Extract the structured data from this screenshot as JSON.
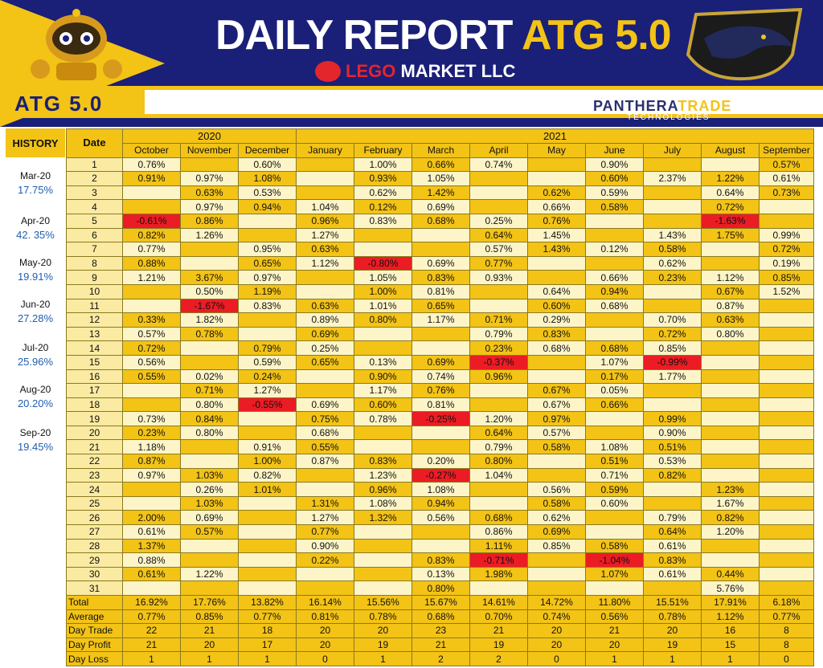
{
  "header": {
    "title_prefix": "DAILY REPORT",
    "title_accent": "ATG 5.0",
    "company_red": "LEGO",
    "company_rest": " MARKET LLC",
    "left_logo": "ATG 5.0",
    "right_brand_a": "PANTHERA",
    "right_brand_b": "TRADE",
    "right_brand_sub": "TECHNOLOGIES"
  },
  "history": {
    "label": "HISTORY",
    "entries": [
      {
        "month": "Mar-20",
        "value": "17.75%"
      },
      {
        "month": "Apr-20",
        "value": "42. 35%"
      },
      {
        "month": "May-20",
        "value": "19.91%"
      },
      {
        "month": "Jun-20",
        "value": "27.28%"
      },
      {
        "month": "Jul-20",
        "value": "25.96%"
      },
      {
        "month": "Aug-20",
        "value": "20.20%"
      },
      {
        "month": "Sep-20",
        "value": "19.45%"
      }
    ]
  },
  "table": {
    "date_label": "Date",
    "years": [
      {
        "label": "2020",
        "span": 3
      },
      {
        "label": "2021",
        "span": 9
      }
    ],
    "months": [
      "October",
      "November",
      "December",
      "January",
      "February",
      "March",
      "April",
      "May",
      "June",
      "July",
      "August",
      "September"
    ],
    "rows": [
      [
        "0.76%",
        "",
        "0.60%",
        "",
        "1.00%",
        "0.66%",
        "0.74%",
        "",
        "0.90%",
        "",
        "",
        "0.57%"
      ],
      [
        "0.91%",
        "0.97%",
        "1.08%",
        "",
        "0.93%",
        "1.05%",
        "",
        "",
        "0.60%",
        "2.37%",
        "1.22%",
        "0.61%"
      ],
      [
        "",
        "0.63%",
        "0.53%",
        "",
        "0.62%",
        "1.42%",
        "",
        "0.62%",
        "0.59%",
        "",
        "0.64%",
        "0.73%"
      ],
      [
        "",
        "0.97%",
        "0.94%",
        "1.04%",
        "0.12%",
        "0.69%",
        "",
        "0.66%",
        "0.58%",
        "",
        "0.72%",
        ""
      ],
      [
        "-0.61%",
        "0.86%",
        "",
        "0.96%",
        "0.83%",
        "0.68%",
        "0.25%",
        "0.76%",
        "",
        "",
        "-1.63%",
        ""
      ],
      [
        "0.82%",
        "1.26%",
        "",
        "1.27%",
        "",
        "",
        "0.64%",
        "1.45%",
        "",
        "1.43%",
        "1.75%",
        "0.99%"
      ],
      [
        "0.77%",
        "",
        "0.95%",
        "0.63%",
        "",
        "",
        "0.57%",
        "1.43%",
        "0.12%",
        "0.58%",
        "",
        "0.72%"
      ],
      [
        "0.88%",
        "",
        "0.65%",
        "1.12%",
        "-0.80%",
        "0.69%",
        "0.77%",
        "",
        "",
        "0.62%",
        "",
        "0.19%"
      ],
      [
        "1.21%",
        "3.67%",
        "0.97%",
        "",
        "1.05%",
        "0.83%",
        "0.93%",
        "",
        "0.66%",
        "0.23%",
        "1.12%",
        "0.85%"
      ],
      [
        "",
        "0.50%",
        "1.19%",
        "",
        "1.00%",
        "0.81%",
        "",
        "0.64%",
        "0.94%",
        "",
        "0.67%",
        "1.52%"
      ],
      [
        "",
        "-1.67%",
        "0.83%",
        "0.63%",
        "1.01%",
        "0.65%",
        "",
        "0.60%",
        "0.68%",
        "",
        "0.87%",
        ""
      ],
      [
        "0.33%",
        "1.82%",
        "",
        "0.89%",
        "0.80%",
        "1.17%",
        "0.71%",
        "0.29%",
        "",
        "0.70%",
        "0.63%",
        ""
      ],
      [
        "0.57%",
        "0.78%",
        "",
        "0.69%",
        "",
        "",
        "0.79%",
        "0.83%",
        "",
        "0.72%",
        "0.80%",
        ""
      ],
      [
        "0.72%",
        "",
        "0.79%",
        "0.25%",
        "",
        "",
        "0.23%",
        "0.68%",
        "0.68%",
        "0.85%",
        "",
        ""
      ],
      [
        "0.56%",
        "",
        "0.59%",
        "0.65%",
        "0.13%",
        "0.69%",
        "-0.37%",
        "",
        "1.07%",
        "-0.99%",
        "",
        ""
      ],
      [
        "0.55%",
        "0.02%",
        "0.24%",
        "",
        "0.90%",
        "0.74%",
        "0.96%",
        "",
        "0.17%",
        "1.77%",
        "",
        ""
      ],
      [
        "",
        "0.71%",
        "1.27%",
        "",
        "1.17%",
        "0.76%",
        "",
        "0.67%",
        "0.05%",
        "",
        "",
        ""
      ],
      [
        "",
        "0.80%",
        "-0.55%",
        "0.69%",
        "0.60%",
        "0.81%",
        "",
        "0.67%",
        "0.66%",
        "",
        "",
        ""
      ],
      [
        "0.73%",
        "0.84%",
        "",
        "0.75%",
        "0.78%",
        "-0.25%",
        "1.20%",
        "0.97%",
        "",
        "0.99%",
        "",
        ""
      ],
      [
        "0.23%",
        "0.80%",
        "",
        "0.68%",
        "",
        "",
        "0.64%",
        "0.57%",
        "",
        "0.90%",
        "",
        ""
      ],
      [
        "1.18%",
        "",
        "0.91%",
        "0.55%",
        "",
        "",
        "0.79%",
        "0.58%",
        "1.08%",
        "0.51%",
        "",
        ""
      ],
      [
        "0.87%",
        "",
        "1.00%",
        "0.87%",
        "0.83%",
        "0.20%",
        "0.80%",
        "",
        "0.51%",
        "0.53%",
        "",
        ""
      ],
      [
        "0.97%",
        "1.03%",
        "0.82%",
        "",
        "1.23%",
        "-0.27%",
        "1.04%",
        "",
        "0.71%",
        "0.82%",
        "",
        ""
      ],
      [
        "",
        "0.26%",
        "1.01%",
        "",
        "0.96%",
        "1.08%",
        "",
        "0.56%",
        "0.59%",
        "",
        "1.23%",
        ""
      ],
      [
        "",
        "1.03%",
        "",
        "1.31%",
        "1.08%",
        "0.94%",
        "",
        "0.58%",
        "0.60%",
        "",
        "1.67%",
        ""
      ],
      [
        "2.00%",
        "0.69%",
        "",
        "1.27%",
        "1.32%",
        "0.56%",
        "0.68%",
        "0.62%",
        "",
        "0.79%",
        "0.82%",
        ""
      ],
      [
        "0.61%",
        "0.57%",
        "",
        "0.77%",
        "",
        "",
        "0.86%",
        "0.69%",
        "",
        "0.64%",
        "1.20%",
        ""
      ],
      [
        "1.37%",
        "",
        "",
        "0.90%",
        "",
        "",
        "1.11%",
        "0.85%",
        "0.58%",
        "0.61%",
        "",
        ""
      ],
      [
        "0.88%",
        "",
        "",
        "0.22%",
        "",
        "0.83%",
        "-0.71%",
        "",
        "-1.04%",
        "0.83%",
        "",
        ""
      ],
      [
        "0.61%",
        "1.22%",
        "",
        "",
        "",
        "0.13%",
        "1.98%",
        "",
        "1.07%",
        "0.61%",
        "0.44%",
        ""
      ],
      [
        "",
        "",
        "",
        "",
        "",
        "0.80%",
        "",
        "",
        "",
        "",
        "5.76%",
        ""
      ]
    ],
    "summary": [
      {
        "label": "Total",
        "values": [
          "16.92%",
          "17.76%",
          "13.82%",
          "16.14%",
          "15.56%",
          "15.67%",
          "14.61%",
          "14.72%",
          "11.80%",
          "15.51%",
          "17.91%",
          "6.18%"
        ]
      },
      {
        "label": "Average",
        "values": [
          "0.77%",
          "0.85%",
          "0.77%",
          "0.81%",
          "0.78%",
          "0.68%",
          "0.70%",
          "0.74%",
          "0.56%",
          "0.78%",
          "1.12%",
          "0.77%"
        ]
      },
      {
        "label": "Day Trade",
        "values": [
          "22",
          "21",
          "18",
          "20",
          "20",
          "23",
          "21",
          "20",
          "21",
          "20",
          "16",
          "8"
        ]
      },
      {
        "label": "Day Profit",
        "values": [
          "21",
          "20",
          "17",
          "20",
          "19",
          "21",
          "19",
          "20",
          "20",
          "19",
          "15",
          "8"
        ]
      },
      {
        "label": "Day Loss",
        "values": [
          "1",
          "1",
          "1",
          "0",
          "1",
          "2",
          "2",
          "0",
          "1",
          "1",
          "1",
          "0"
        ]
      }
    ]
  },
  "colors": {
    "navy": "#1a1f78",
    "gold": "#f3c316",
    "light_cell": "#fdf5c8",
    "negative": "#ec1c24",
    "history_value": "#1f5faf"
  }
}
